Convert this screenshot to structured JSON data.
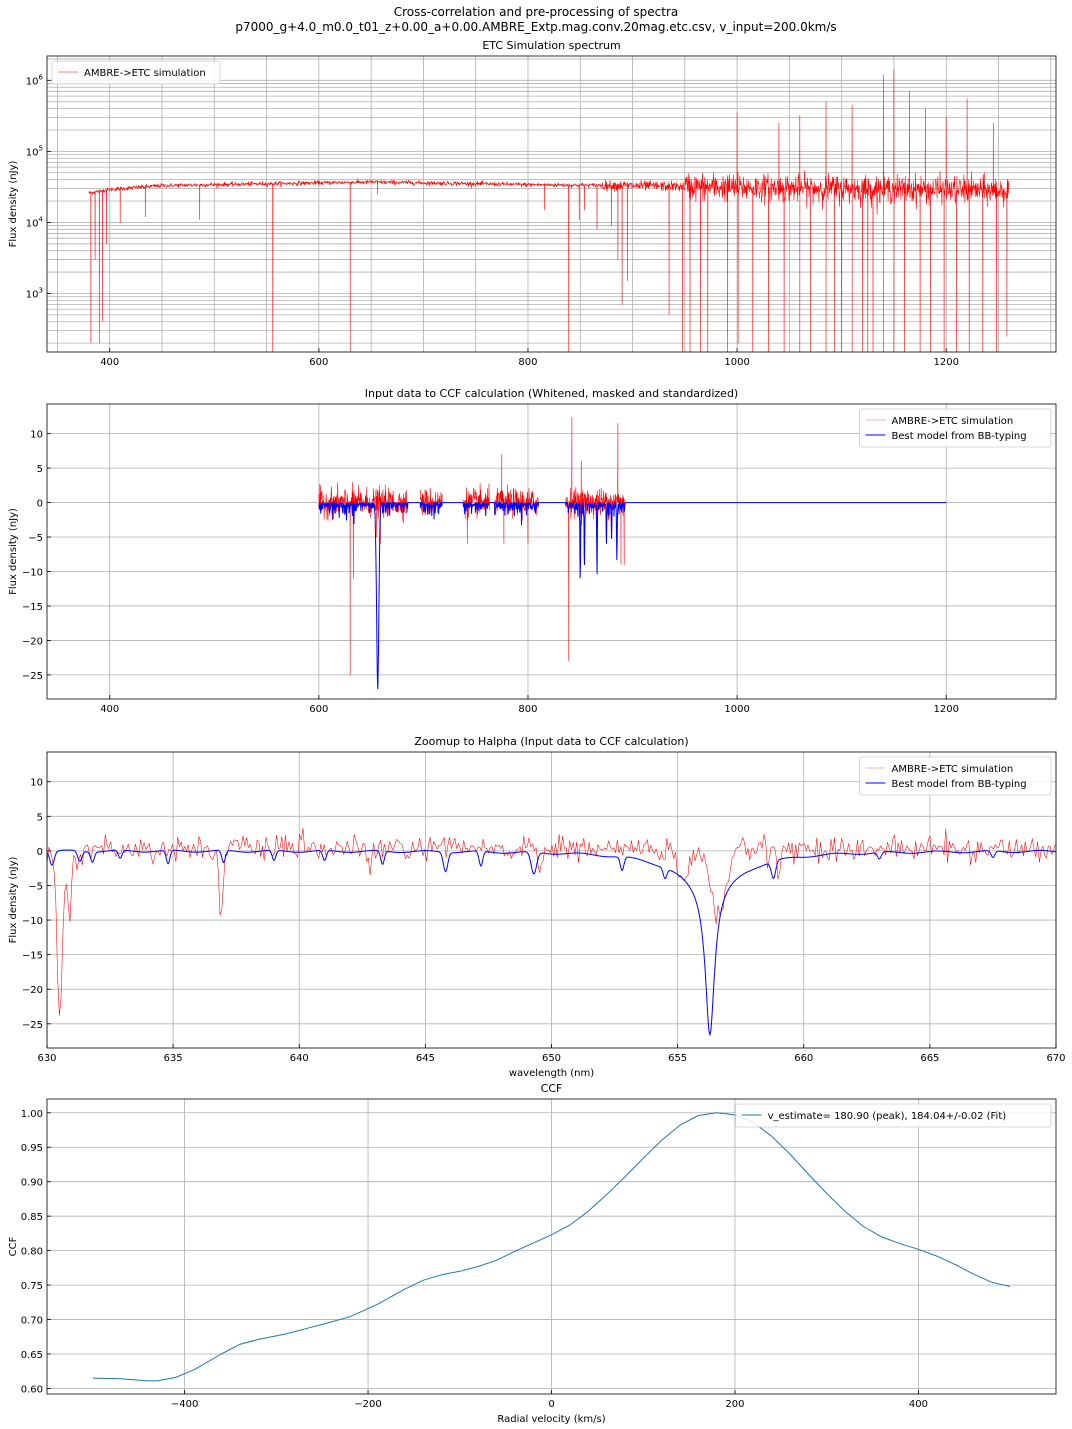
{
  "figure": {
    "suptitle_line1": "Cross-correlation and pre-processing of spectra",
    "suptitle_line2": "p7000_g+4.0_m0.0_t01_z+0.00_a+0.00.AMBRE_Extp.mag.conv.20mag.etc.csv, v_input=200.0km/s"
  },
  "colors": {
    "simulation": "#ff0000",
    "model": "#0000ff",
    "ccf": "#1f77b4",
    "grid": "#b0b0b0"
  },
  "chart_data": [
    {
      "type": "line",
      "title": "ETC Simulation spectrum",
      "xlabel": "",
      "ylabel": "Flux density (nJy)",
      "yscale": "log",
      "xlim": [
        340,
        1305
      ],
      "ylim": [
        150,
        2200000
      ],
      "xticks": [
        400,
        600,
        800,
        1000,
        1200
      ],
      "yticks": [
        {
          "v": 1000,
          "label": "10^3"
        },
        {
          "v": 10000,
          "label": "10^4"
        },
        {
          "v": 100000,
          "label": "10^5"
        },
        {
          "v": 1000000,
          "label": "10^6"
        }
      ],
      "grid": "major+minor",
      "legend": "upper left",
      "series": [
        {
          "name": "AMBRE->ETC simulation",
          "style": "noisy-spectrum",
          "x_range": [
            380,
            1260
          ],
          "continuum": [
            [
              380,
              26000
            ],
            [
              400,
              29000
            ],
            [
              450,
              33000
            ],
            [
              550,
              35000
            ],
            [
              650,
              37000
            ],
            [
              800,
              34000
            ],
            [
              900,
              33000
            ],
            [
              1000,
              31000
            ],
            [
              1100,
              30000
            ],
            [
              1260,
              28000
            ]
          ],
          "absorption_lines": [
            {
              "x": 382,
              "y": 200
            },
            {
              "x": 386,
              "y": 3000
            },
            {
              "x": 390,
              "y": 200
            },
            {
              "x": 393,
              "y": 400
            },
            {
              "x": 397,
              "y": 5000
            },
            {
              "x": 410,
              "y": 10000
            },
            {
              "x": 434,
              "y": 12000
            },
            {
              "x": 486,
              "y": 11000
            },
            {
              "x": 556,
              "y": 150
            },
            {
              "x": 630,
              "y": 150
            },
            {
              "x": 656,
              "y": 25000
            },
            {
              "x": 816,
              "y": 15000
            },
            {
              "x": 839,
              "y": 150
            },
            {
              "x": 849,
              "y": 11000
            },
            {
              "x": 854,
              "y": 15000
            },
            {
              "x": 866,
              "y": 8000
            },
            {
              "x": 880,
              "y": 9000
            },
            {
              "x": 886,
              "y": 3000
            },
            {
              "x": 890,
              "y": 700
            },
            {
              "x": 895,
              "y": 1500
            },
            {
              "x": 935,
              "y": 500
            },
            {
              "x": 948,
              "y": 150
            },
            {
              "x": 955,
              "y": 150
            },
            {
              "x": 965,
              "y": 150
            },
            {
              "x": 972,
              "y": 150
            },
            {
              "x": 991,
              "y": 150
            },
            {
              "x": 1001,
              "y": 200
            },
            {
              "x": 1015,
              "y": 150
            },
            {
              "x": 1030,
              "y": 150
            },
            {
              "x": 1045,
              "y": 150
            },
            {
              "x": 1060,
              "y": 150
            },
            {
              "x": 1070,
              "y": 150
            },
            {
              "x": 1085,
              "y": 150
            },
            {
              "x": 1093,
              "y": 150
            },
            {
              "x": 1100,
              "y": 150
            },
            {
              "x": 1110,
              "y": 150
            },
            {
              "x": 1120,
              "y": 150
            },
            {
              "x": 1125,
              "y": 150
            },
            {
              "x": 1130,
              "y": 150
            },
            {
              "x": 1140,
              "y": 150
            },
            {
              "x": 1150,
              "y": 150
            },
            {
              "x": 1160,
              "y": 150
            },
            {
              "x": 1175,
              "y": 150
            },
            {
              "x": 1185,
              "y": 150
            },
            {
              "x": 1198,
              "y": 150
            },
            {
              "x": 1210,
              "y": 150
            },
            {
              "x": 1222,
              "y": 150
            },
            {
              "x": 1235,
              "y": 150
            },
            {
              "x": 1248,
              "y": 150
            },
            {
              "x": 1258,
              "y": 250
            }
          ],
          "emission_spikes": [
            {
              "x": 1000,
              "y": 350000
            },
            {
              "x": 1040,
              "y": 250000
            },
            {
              "x": 1060,
              "y": 320000
            },
            {
              "x": 1085,
              "y": 500000
            },
            {
              "x": 1110,
              "y": 450000
            },
            {
              "x": 1140,
              "y": 1200000
            },
            {
              "x": 1150,
              "y": 1400000
            },
            {
              "x": 1165,
              "y": 700000
            },
            {
              "x": 1180,
              "y": 400000
            },
            {
              "x": 1200,
              "y": 300000
            },
            {
              "x": 1220,
              "y": 550000
            },
            {
              "x": 1245,
              "y": 250000
            }
          ]
        }
      ]
    },
    {
      "type": "line",
      "title": "Input data to CCF calculation (Whitened, masked and standardized)",
      "xlabel": "",
      "ylabel": "Flux density (nJy)",
      "xlim": [
        340,
        1305
      ],
      "ylim": [
        -28.5,
        14.3
      ],
      "xticks": [
        400,
        600,
        800,
        1000,
        1200
      ],
      "yticks": [
        10,
        5,
        0,
        -5,
        -10,
        -15,
        -20,
        -25
      ],
      "grid": "major",
      "legend": "upper right",
      "series": [
        {
          "name": "AMBRE->ETC simulation",
          "style": "masked-noise",
          "segments": [
            [
              600,
              685
            ],
            [
              697,
              718
            ],
            [
              738,
              763
            ],
            [
              768,
              810
            ],
            [
              836,
              893
            ]
          ],
          "spikes": [
            {
              "x": 630,
              "y": -25
            },
            {
              "x": 633,
              "y": -11
            },
            {
              "x": 655,
              "y": -5
            },
            {
              "x": 659,
              "y": -6
            },
            {
              "x": 742,
              "y": -6
            },
            {
              "x": 775,
              "y": 7
            },
            {
              "x": 777,
              "y": -6
            },
            {
              "x": 800,
              "y": -6
            },
            {
              "x": 839,
              "y": -23
            },
            {
              "x": 842,
              "y": 12.4
            },
            {
              "x": 851,
              "y": 6
            },
            {
              "x": 866,
              "y": -6
            },
            {
              "x": 886,
              "y": 11.5
            },
            {
              "x": 889,
              "y": -9
            },
            {
              "x": 892,
              "y": -9
            }
          ]
        },
        {
          "name": "Best model from BB-typing",
          "style": "flat-with-dips",
          "x_range": [
            600,
            1200
          ],
          "dips": [
            {
              "x": 656.3,
              "y": -26.5
            },
            {
              "x": 850,
              "y": -11
            },
            {
              "x": 854,
              "y": -9
            },
            {
              "x": 866,
              "y": -10
            },
            {
              "x": 875,
              "y": -6
            },
            {
              "x": 885,
              "y": -7
            },
            {
              "x": 880,
              "y": -5
            }
          ]
        }
      ]
    },
    {
      "type": "line",
      "title": "Zoomup to Halpha (Input data to CCF calculation)",
      "xlabel": "wavelength (nm)",
      "ylabel": "Flux density (nJy)",
      "xlim": [
        630,
        670
      ],
      "ylim": [
        -28.5,
        14.3
      ],
      "xticks": [
        630,
        635,
        640,
        645,
        650,
        655,
        660,
        665,
        670
      ],
      "yticks": [
        10,
        5,
        0,
        -5,
        -10,
        -15,
        -20,
        -25
      ],
      "grid": "major",
      "legend": "upper right",
      "series": [
        {
          "name": "AMBRE->ETC simulation",
          "style": "noisy",
          "features": [
            {
              "x": 630.5,
              "y": -25,
              "w": 0.15
            },
            {
              "x": 630.9,
              "y": -10.5,
              "w": 0.12
            },
            {
              "x": 636.9,
              "y": -8.7,
              "w": 0.12
            },
            {
              "x": 642.8,
              "y": -4,
              "w": 0.1
            },
            {
              "x": 649.5,
              "y": -3,
              "w": 0.12
            },
            {
              "x": 655.2,
              "y": -5,
              "w": 0.3
            },
            {
              "x": 656.6,
              "y": -9.3,
              "w": 0.45
            },
            {
              "x": 659.0,
              "y": -3,
              "w": 0.1
            }
          ]
        },
        {
          "name": "Best model from BB-typing",
          "style": "smooth-with-lines",
          "features": [
            {
              "x": 630.2,
              "y": -2,
              "w": 0.12
            },
            {
              "x": 631.3,
              "y": -1.5,
              "w": 0.12
            },
            {
              "x": 631.8,
              "y": -1.5,
              "w": 0.1
            },
            {
              "x": 632.9,
              "y": -1.2,
              "w": 0.1
            },
            {
              "x": 634.8,
              "y": -2,
              "w": 0.1
            },
            {
              "x": 637.0,
              "y": -1.8,
              "w": 0.1
            },
            {
              "x": 639.0,
              "y": -1.5,
              "w": 0.1
            },
            {
              "x": 641.0,
              "y": -1.5,
              "w": 0.1
            },
            {
              "x": 643.3,
              "y": -2,
              "w": 0.1
            },
            {
              "x": 645.8,
              "y": -2.8,
              "w": 0.12
            },
            {
              "x": 647.2,
              "y": -2.2,
              "w": 0.1
            },
            {
              "x": 649.3,
              "y": -3.2,
              "w": 0.15
            },
            {
              "x": 652.8,
              "y": -2,
              "w": 0.1
            },
            {
              "x": 654.5,
              "y": -1.5,
              "w": 0.1
            },
            {
              "x": 658.8,
              "y": -2.5,
              "w": 0.12
            },
            {
              "x": 663.0,
              "y": -1,
              "w": 0.1
            },
            {
              "x": 667.5,
              "y": -1,
              "w": 0.1
            }
          ],
          "halpha": {
            "center": 656.28,
            "depth": -26.5
          }
        }
      ]
    },
    {
      "type": "line",
      "title": "CCF",
      "xlabel": "Radial velocity (km/s)",
      "ylabel": "CCF",
      "xlim": [
        -550,
        550
      ],
      "ylim": [
        0.592,
        1.02
      ],
      "xticks": [
        -400,
        -200,
        0,
        200,
        400
      ],
      "yticks": [
        0.6,
        0.65,
        0.7,
        0.75,
        0.8,
        0.85,
        0.9,
        0.95,
        1.0
      ],
      "grid": "major",
      "legend": "upper right",
      "series": [
        {
          "name": "v_estimate= 180.90 (peak), 184.04+/-0.02 (Fit)",
          "x": [
            -500,
            -470,
            -440,
            -430,
            -410,
            -390,
            -360,
            -340,
            -320,
            -290,
            -270,
            -250,
            -220,
            -190,
            -160,
            -140,
            -120,
            -100,
            -80,
            -60,
            -40,
            -20,
            0,
            20,
            40,
            60,
            80,
            100,
            120,
            140,
            160,
            180,
            200,
            220,
            240,
            260,
            280,
            300,
            320,
            340,
            360,
            380,
            400,
            420,
            440,
            460,
            480,
            500
          ],
          "y": [
            0.615,
            0.614,
            0.611,
            0.611,
            0.616,
            0.627,
            0.65,
            0.664,
            0.671,
            0.679,
            0.686,
            0.693,
            0.704,
            0.722,
            0.744,
            0.757,
            0.765,
            0.77,
            0.777,
            0.786,
            0.799,
            0.811,
            0.823,
            0.837,
            0.857,
            0.881,
            0.907,
            0.934,
            0.96,
            0.982,
            0.996,
            1.0,
            0.997,
            0.986,
            0.966,
            0.94,
            0.911,
            0.883,
            0.857,
            0.835,
            0.82,
            0.81,
            0.802,
            0.792,
            0.78,
            0.766,
            0.754,
            0.748
          ]
        }
      ]
    }
  ]
}
